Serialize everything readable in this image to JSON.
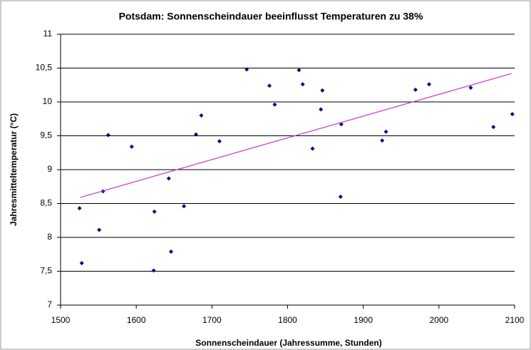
{
  "chart_data": {
    "type": "scatter",
    "title": "Potsdam: Sonnenscheindauer beeinflusst Temperaturen zu 38%",
    "xlabel": "Sonnenscheindauer (Jahressumme, Stunden)",
    "ylabel": "Jahresmitteltemperatur (°C)",
    "xlim": [
      1500,
      2100
    ],
    "xticks": [
      1500,
      1600,
      1700,
      1800,
      1900,
      2000,
      2100
    ],
    "ylim": [
      7,
      11
    ],
    "yticks": [
      7,
      {
        "value": 7.5,
        "label": "7,5"
      },
      8,
      {
        "value": 8.5,
        "label": "8,5"
      },
      9,
      {
        "value": 9.5,
        "label": "9,5"
      },
      10,
      {
        "value": 10.5,
        "label": "10,5"
      },
      11
    ],
    "grid": true,
    "series": [
      {
        "color": "#000080",
        "x": [
          1525,
          1528,
          1551,
          1556,
          1563,
          1594,
          1623,
          1624,
          1643,
          1646,
          1663,
          1679,
          1686,
          1710,
          1746,
          1776,
          1783,
          1815,
          1820,
          1833,
          1846,
          1844,
          1870,
          1871,
          1925,
          1930,
          1969,
          1987,
          2042,
          2072,
          2097
        ],
        "values": [
          8.43,
          7.62,
          8.11,
          8.68,
          9.51,
          9.34,
          7.51,
          8.38,
          8.87,
          7.79,
          8.46,
          9.52,
          9.8,
          9.42,
          10.48,
          10.24,
          9.96,
          10.47,
          10.26,
          9.31,
          10.17,
          9.89,
          8.6,
          9.67,
          9.43,
          9.56,
          10.18,
          10.26,
          10.21,
          9.63,
          9.82
        ]
      }
    ],
    "trendline": {
      "color": "#cc33cc",
      "x": [
        1526,
        2096
      ],
      "values": [
        8.59,
        10.42
      ]
    }
  }
}
